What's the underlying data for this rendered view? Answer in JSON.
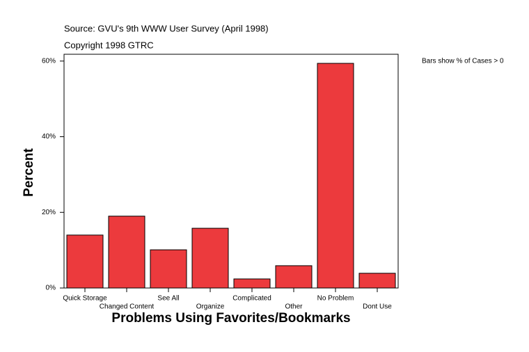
{
  "chart_data": {
    "type": "bar",
    "source": "Source: GVU's 9th WWW User Survey (April 1998)",
    "copyright": "Copyright 1998 GTRC",
    "note": "Bars show % of Cases > 0",
    "y_label": "Percent",
    "x_label": "Problems Using Favorites/Bookmarks",
    "categories": [
      "Quick Storage",
      "Changed Content",
      "See All",
      "Organize",
      "Complicated",
      "Other",
      "No Problem",
      "Dont Use"
    ],
    "values": [
      14.0,
      19.0,
      10.1,
      15.8,
      2.4,
      5.9,
      59.4,
      3.9
    ],
    "color": "#ec3a3d",
    "ylim": [
      0,
      61.8
    ],
    "yticks": [
      {
        "value": 0,
        "label": "0%"
      },
      {
        "value": 20,
        "label": "20%"
      },
      {
        "value": 40,
        "label": "40%"
      },
      {
        "value": 60,
        "label": "60%"
      }
    ]
  }
}
